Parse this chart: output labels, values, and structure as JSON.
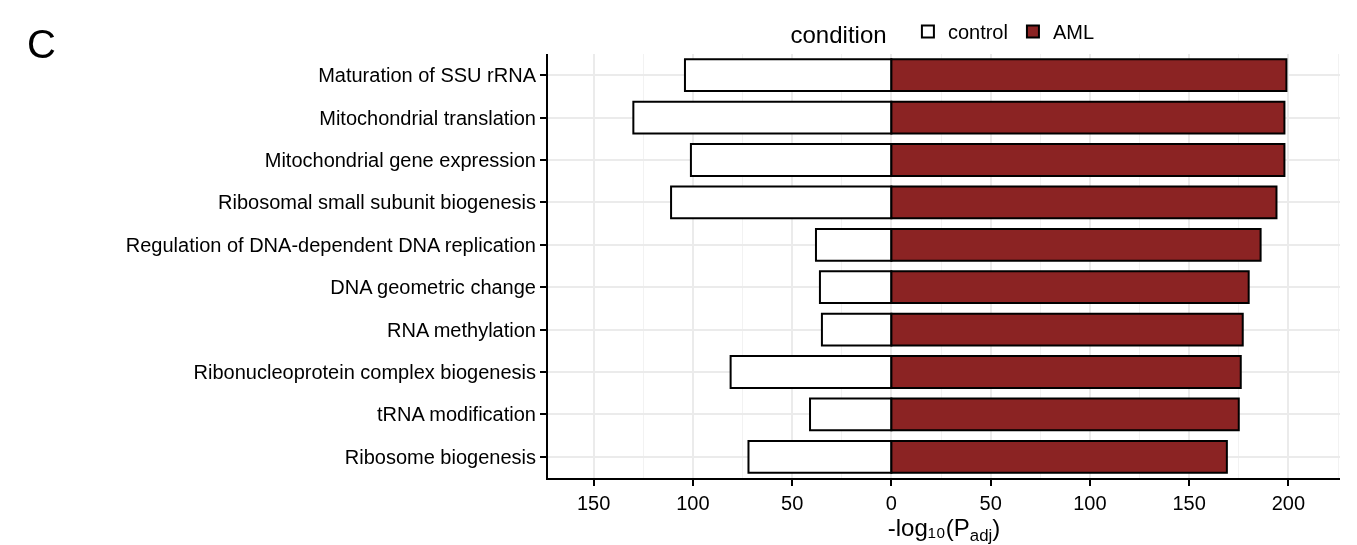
{
  "chart_data": {
    "type": "bar",
    "orientation": "horizontal",
    "stacked": true,
    "xlabel": "-log₁₀(P$_{adj}$)",
    "legend_title": "condition",
    "legend": "top",
    "annotations": [
      "C"
    ],
    "categories": [
      "Maturation of SSU rRNA",
      "Mitochondrial translation",
      "Mitochondrial gene expression",
      "Ribosomal small subunit biogenesis",
      "Regulation of DNA-dependent DNA replication",
      "DNA geometric change",
      "RNA methylation",
      "Ribonucleoprotein complex biogenesis",
      "tRNA modification",
      "Ribosome biogenesis"
    ],
    "series": [
      {
        "name": "control",
        "color": "#ffffff",
        "values": [
          -104,
          -130,
          -101,
          -111,
          -38,
          -36,
          -35,
          -81,
          -41,
          -72
        ]
      },
      {
        "name": "AML",
        "color": "#8b2323",
        "values": [
          199,
          198,
          198,
          194,
          186,
          180,
          177,
          176,
          175,
          169
        ]
      }
    ],
    "xlim": [
      -173,
      226
    ],
    "xticks": [
      {
        "value": -150,
        "label": "150"
      },
      {
        "value": -100,
        "label": "100"
      },
      {
        "value": -50,
        "label": "50"
      },
      0,
      50,
      100,
      150,
      200
    ],
    "grid": true
  }
}
